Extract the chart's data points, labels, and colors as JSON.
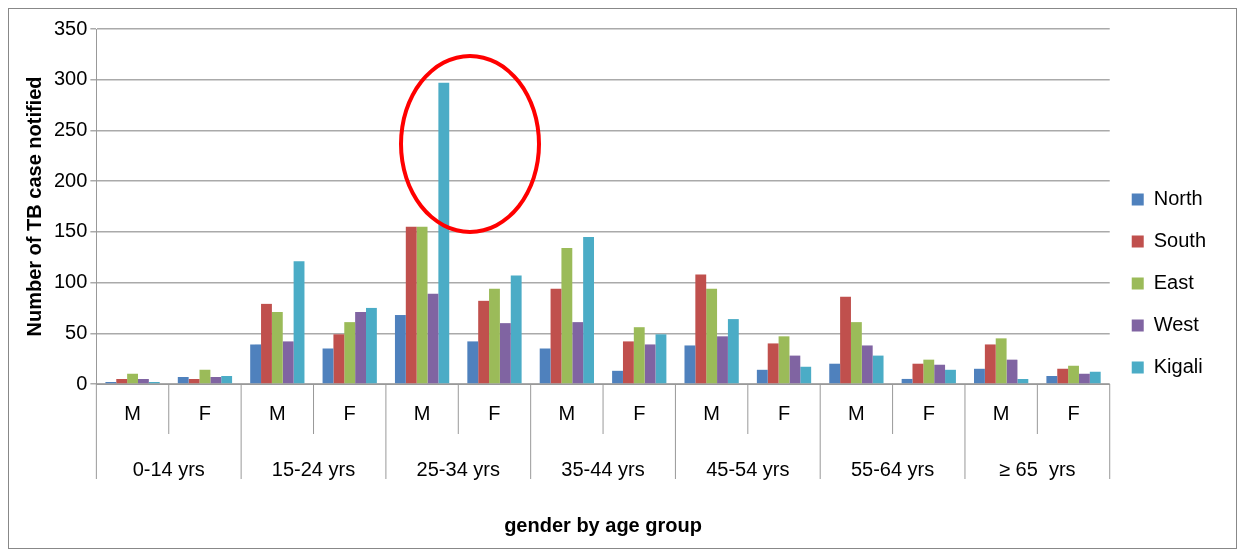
{
  "chart_data": {
    "type": "bar",
    "xlabel": "gender by age group",
    "ylabel": "Number of TB case notified",
    "categories": [
      "M",
      "F",
      "M",
      "F",
      "M",
      "F",
      "M",
      "F",
      "M",
      "F",
      "M",
      "F",
      "M",
      "F"
    ],
    "annotations": [
      "0-14 yrs",
      "15-24 yrs",
      "25-34 yrs",
      "35-44 yrs",
      "45-54 yrs",
      "55-64 yrs",
      "≥ 65  yrs"
    ],
    "series": [
      {
        "name": "North",
        "color": "#4f81bd",
        "values": [
          2,
          7,
          39,
          35,
          68,
          42,
          35,
          13,
          38,
          14,
          20,
          5,
          15,
          8
        ]
      },
      {
        "name": "South",
        "color": "#c0504d",
        "values": [
          5,
          5,
          79,
          49,
          155,
          82,
          94,
          42,
          108,
          40,
          86,
          20,
          39,
          15
        ]
      },
      {
        "name": "East",
        "color": "#9bbb59",
        "values": [
          10,
          14,
          71,
          61,
          155,
          94,
          134,
          56,
          94,
          47,
          61,
          24,
          45,
          18
        ]
      },
      {
        "name": "West",
        "color": "#8064a2",
        "values": [
          5,
          7,
          42,
          71,
          89,
          60,
          61,
          39,
          47,
          28,
          38,
          19,
          24,
          10
        ]
      },
      {
        "name": "Kigali",
        "color": "#4bacc6",
        "values": [
          2,
          8,
          121,
          75,
          297,
          107,
          145,
          49,
          64,
          17,
          28,
          14,
          5,
          12
        ]
      }
    ],
    "ylim": [
      0,
      350
    ],
    "yticks": [
      0,
      50,
      100,
      150,
      200,
      250,
      300,
      350
    ],
    "grid": "y",
    "legend": "right"
  }
}
